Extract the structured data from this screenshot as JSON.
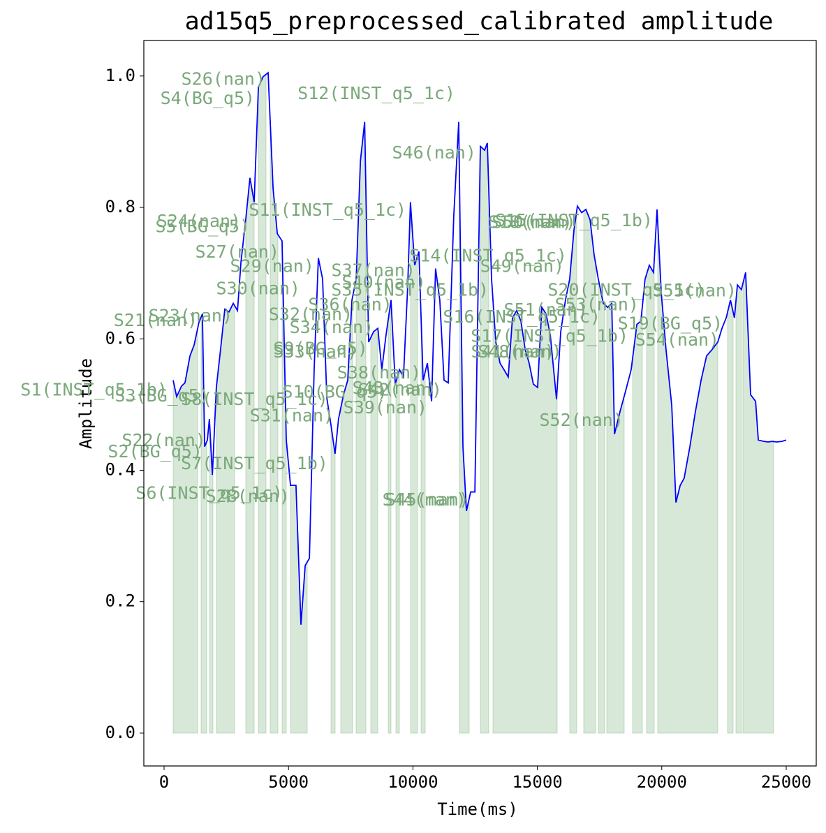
{
  "chart_data": {
    "type": "line",
    "title": "ad15q5_preprocessed_calibrated amplitude",
    "xlabel": "Time(ms)",
    "ylabel": "Amplitude",
    "xlim": [
      -814,
      26207
    ],
    "ylim": [
      -0.05,
      1.054
    ],
    "xticks": [
      0,
      5000,
      10000,
      15000,
      20000,
      25000
    ],
    "yticks": [
      {
        "value": 0,
        "label": "0.0"
      },
      0.2,
      0.4,
      0.6,
      0.8,
      {
        "value": 1,
        "label": "1.0"
      }
    ],
    "color": "#0000ff",
    "fill_color": "#3c8c3c",
    "x": [
      365,
      505,
      700,
      840,
      1040,
      1210,
      1400,
      1540,
      1630,
      1740,
      1820,
      1940,
      2100,
      2270,
      2440,
      2610,
      2780,
      2950,
      3090,
      3280,
      3450,
      3620,
      3790,
      3980,
      4180,
      4380,
      4550,
      4740,
      4910,
      5080,
      5300,
      5500,
      5670,
      5840,
      6030,
      6200,
      6370,
      6540,
      6710,
      6870,
      7010,
      7210,
      7380,
      7550,
      7720,
      7890,
      8060,
      8220,
      8420,
      8590,
      8750,
      8920,
      9120,
      9290,
      9460,
      9620,
      9790,
      9900,
      10070,
      10240,
      10410,
      10580,
      10750,
      10910,
      11080,
      11250,
      11420,
      11640,
      11840,
      12010,
      12150,
      12320,
      12490,
      12710,
      12880,
      12990,
      13160,
      13330,
      13500,
      13660,
      13830,
      14000,
      14170,
      14340,
      14510,
      14670,
      14840,
      15010,
      15180,
      15350,
      15520,
      15770,
      15940,
      16130,
      16300,
      16470,
      16610,
      16780,
      16950,
      17120,
      17280,
      17450,
      17650,
      17820,
      17990,
      18100,
      18320,
      18550,
      18770,
      19000,
      19160,
      19330,
      19500,
      19670,
      19810,
      19980,
      20170,
      20400,
      20570,
      20740,
      20900,
      21130,
      21350,
      21580,
      21800,
      22030,
      22250,
      22420,
      22590,
      22760,
      22920,
      23040,
      23200,
      23370,
      23570,
      23770,
      23880,
      24100,
      24270,
      24440,
      24610,
      24830,
      25000
    ],
    "values": [
      0.537,
      0.512,
      0.528,
      0.533,
      0.574,
      0.591,
      0.625,
      0.638,
      0.436,
      0.446,
      0.478,
      0.393,
      0.526,
      0.584,
      0.645,
      0.641,
      0.654,
      0.643,
      0.717,
      0.781,
      0.845,
      0.808,
      0.983,
      0.999,
      1.005,
      0.829,
      0.76,
      0.749,
      0.446,
      0.377,
      0.377,
      0.165,
      0.255,
      0.266,
      0.553,
      0.723,
      0.691,
      0.51,
      0.468,
      0.425,
      0.478,
      0.515,
      0.537,
      0.659,
      0.691,
      0.871,
      0.93,
      0.595,
      0.611,
      0.616,
      0.553,
      0.606,
      0.659,
      0.531,
      0.553,
      0.542,
      0.68,
      0.808,
      0.712,
      0.733,
      0.537,
      0.563,
      0.505,
      0.707,
      0.659,
      0.537,
      0.533,
      0.786,
      0.93,
      0.436,
      0.338,
      0.367,
      0.367,
      0.893,
      0.887,
      0.898,
      0.691,
      0.595,
      0.563,
      0.553,
      0.542,
      0.632,
      0.643,
      0.627,
      0.584,
      0.563,
      0.531,
      0.526,
      0.648,
      0.638,
      0.606,
      0.508,
      0.611,
      0.659,
      0.691,
      0.765,
      0.802,
      0.792,
      0.797,
      0.781,
      0.728,
      0.691,
      0.654,
      0.648,
      0.654,
      0.455,
      0.489,
      0.521,
      0.553,
      0.622,
      0.627,
      0.691,
      0.712,
      0.701,
      0.797,
      0.67,
      0.584,
      0.499,
      0.351,
      0.377,
      0.388,
      0.436,
      0.489,
      0.537,
      0.574,
      0.584,
      0.595,
      0.616,
      0.632,
      0.659,
      0.632,
      0.682,
      0.675,
      0.701,
      0.515,
      0.505,
      0.446,
      0.444,
      0.443,
      0.444,
      0.443,
      0.444,
      0.446
    ],
    "segments": [
      [
        365,
        1347
      ],
      [
        1487,
        1712
      ],
      [
        1824,
        1964
      ],
      [
        2104,
        2834
      ],
      [
        3283,
        3620
      ],
      [
        3788,
        4097
      ],
      [
        4265,
        4574
      ],
      [
        4742,
        4910
      ],
      [
        5079,
        5752
      ],
      [
        6706,
        6874
      ],
      [
        7099,
        7576
      ],
      [
        7716,
        8109
      ],
      [
        8305,
        8586
      ],
      [
        9007,
        9119
      ],
      [
        9315,
        9456
      ],
      [
        9905,
        10185
      ],
      [
        10326,
        10494
      ],
      [
        11869,
        12262
      ],
      [
        12710,
        13047
      ],
      [
        13215,
        15797
      ],
      [
        16302,
        16582
      ],
      [
        16863,
        17340
      ],
      [
        17452,
        17705
      ],
      [
        17789,
        18490
      ],
      [
        18827,
        19220
      ],
      [
        19388,
        19697
      ],
      [
        19837,
        22250
      ],
      [
        22643,
        22868
      ],
      [
        22980,
        23204
      ],
      [
        23260,
        24495
      ]
    ],
    "annotations": [
      {
        "text": "S1(INST_q5_1b)",
        "x": 140,
        "y": 0.521
      },
      {
        "text": "S3(BG_q5)",
        "x": 1820,
        "y": 0.512
      },
      {
        "text": "S8(INST_q5_1c)",
        "x": 6590,
        "y": 0.507
      },
      {
        "text": "S2(BG_q5)",
        "x": 1540,
        "y": 0.427
      },
      {
        "text": "S22(nan)",
        "x": 1680,
        "y": 0.444
      },
      {
        "text": "S7(INST_q5_1b)",
        "x": 6590,
        "y": 0.409
      },
      {
        "text": "S6(INST_q5_1c)",
        "x": 4770,
        "y": 0.364
      },
      {
        "text": "S28(nan)",
        "x": 5050,
        "y": 0.359
      },
      {
        "text": "S21(nan)",
        "x": 1350,
        "y": 0.627
      },
      {
        "text": "S23(nan)",
        "x": 2750,
        "y": 0.634
      },
      {
        "text": "S24(nan)",
        "x": 3090,
        "y": 0.778
      },
      {
        "text": "S5(BG_q5)",
        "x": 3450,
        "y": 0.77
      },
      {
        "text": "S11(INST_q5_1c)",
        "x": 9740,
        "y": 0.795
      },
      {
        "text": "S27(nan)",
        "x": 4630,
        "y": 0.731
      },
      {
        "text": "S26(nan)",
        "x": 4070,
        "y": 0.994
      },
      {
        "text": "S4(BG_q5)",
        "x": 3650,
        "y": 0.965
      },
      {
        "text": "S12(INST_q5_1c)",
        "x": 11700,
        "y": 0.972
      },
      {
        "text": "S29(nan)",
        "x": 6030,
        "y": 0.709
      },
      {
        "text": "S30(nan)",
        "x": 5470,
        "y": 0.675
      },
      {
        "text": "S35(INST_q5_1b)",
        "x": 13050,
        "y": 0.673
      },
      {
        "text": "S37(nan)",
        "x": 10100,
        "y": 0.703
      },
      {
        "text": "S40(nan)",
        "x": 10520,
        "y": 0.685
      },
      {
        "text": "S36(nan)",
        "x": 9170,
        "y": 0.651
      },
      {
        "text": "S32(nan)",
        "x": 7580,
        "y": 0.636
      },
      {
        "text": "S34(nan)",
        "x": 8420,
        "y": 0.616
      },
      {
        "text": "S9(BG_q5)",
        "x": 8190,
        "y": 0.584
      },
      {
        "text": "S33(nan)",
        "x": 7770,
        "y": 0.579
      },
      {
        "text": "S38(nan)",
        "x": 10330,
        "y": 0.547
      },
      {
        "text": "S10(BG_q5)",
        "x": 8980,
        "y": 0.518
      },
      {
        "text": "S42(nan)",
        "x": 11170,
        "y": 0.521
      },
      {
        "text": "S43(nan)",
        "x": 10940,
        "y": 0.524
      },
      {
        "text": "S39(nan)",
        "x": 10580,
        "y": 0.494
      },
      {
        "text": "S31(nan)",
        "x": 6820,
        "y": 0.482
      },
      {
        "text": "S14(INST_q5_1c)",
        "x": 16190,
        "y": 0.725
      },
      {
        "text": "S16(INST_q5_1c)",
        "x": 17540,
        "y": 0.632
      },
      {
        "text": "S17(INST_q5_1b)",
        "x": 18660,
        "y": 0.603
      },
      {
        "text": "S41(nan)",
        "x": 15710,
        "y": 0.579
      },
      {
        "text": "S48(nan)",
        "x": 15990,
        "y": 0.579
      },
      {
        "text": "S44(nan)",
        "x": 12150,
        "y": 0.354
      },
      {
        "text": "S45(nan)",
        "x": 12260,
        "y": 0.354
      },
      {
        "text": "S46(nan)",
        "x": 12540,
        "y": 0.882
      },
      {
        "text": "S15(INST_q5_1b)",
        "x": 19640,
        "y": 0.779
      },
      {
        "text": "S18(nan)",
        "x": 16410,
        "y": 0.776
      },
      {
        "text": "S50(nan)",
        "x": 16550,
        "y": 0.776
      },
      {
        "text": "S49(nan)",
        "x": 16080,
        "y": 0.709
      },
      {
        "text": "S51(nan)",
        "x": 17030,
        "y": 0.643
      },
      {
        "text": "S53(nan)",
        "x": 19080,
        "y": 0.651
      },
      {
        "text": "S20(INST_q5_1c)",
        "x": 21750,
        "y": 0.673
      },
      {
        "text": "S55(nan)",
        "x": 23010,
        "y": 0.672
      },
      {
        "text": "S19(BG_q5)",
        "x": 22450,
        "y": 0.622
      },
      {
        "text": "S54(nan)",
        "x": 22310,
        "y": 0.597
      },
      {
        "text": "S52(nan)",
        "x": 18460,
        "y": 0.475
      }
    ]
  }
}
